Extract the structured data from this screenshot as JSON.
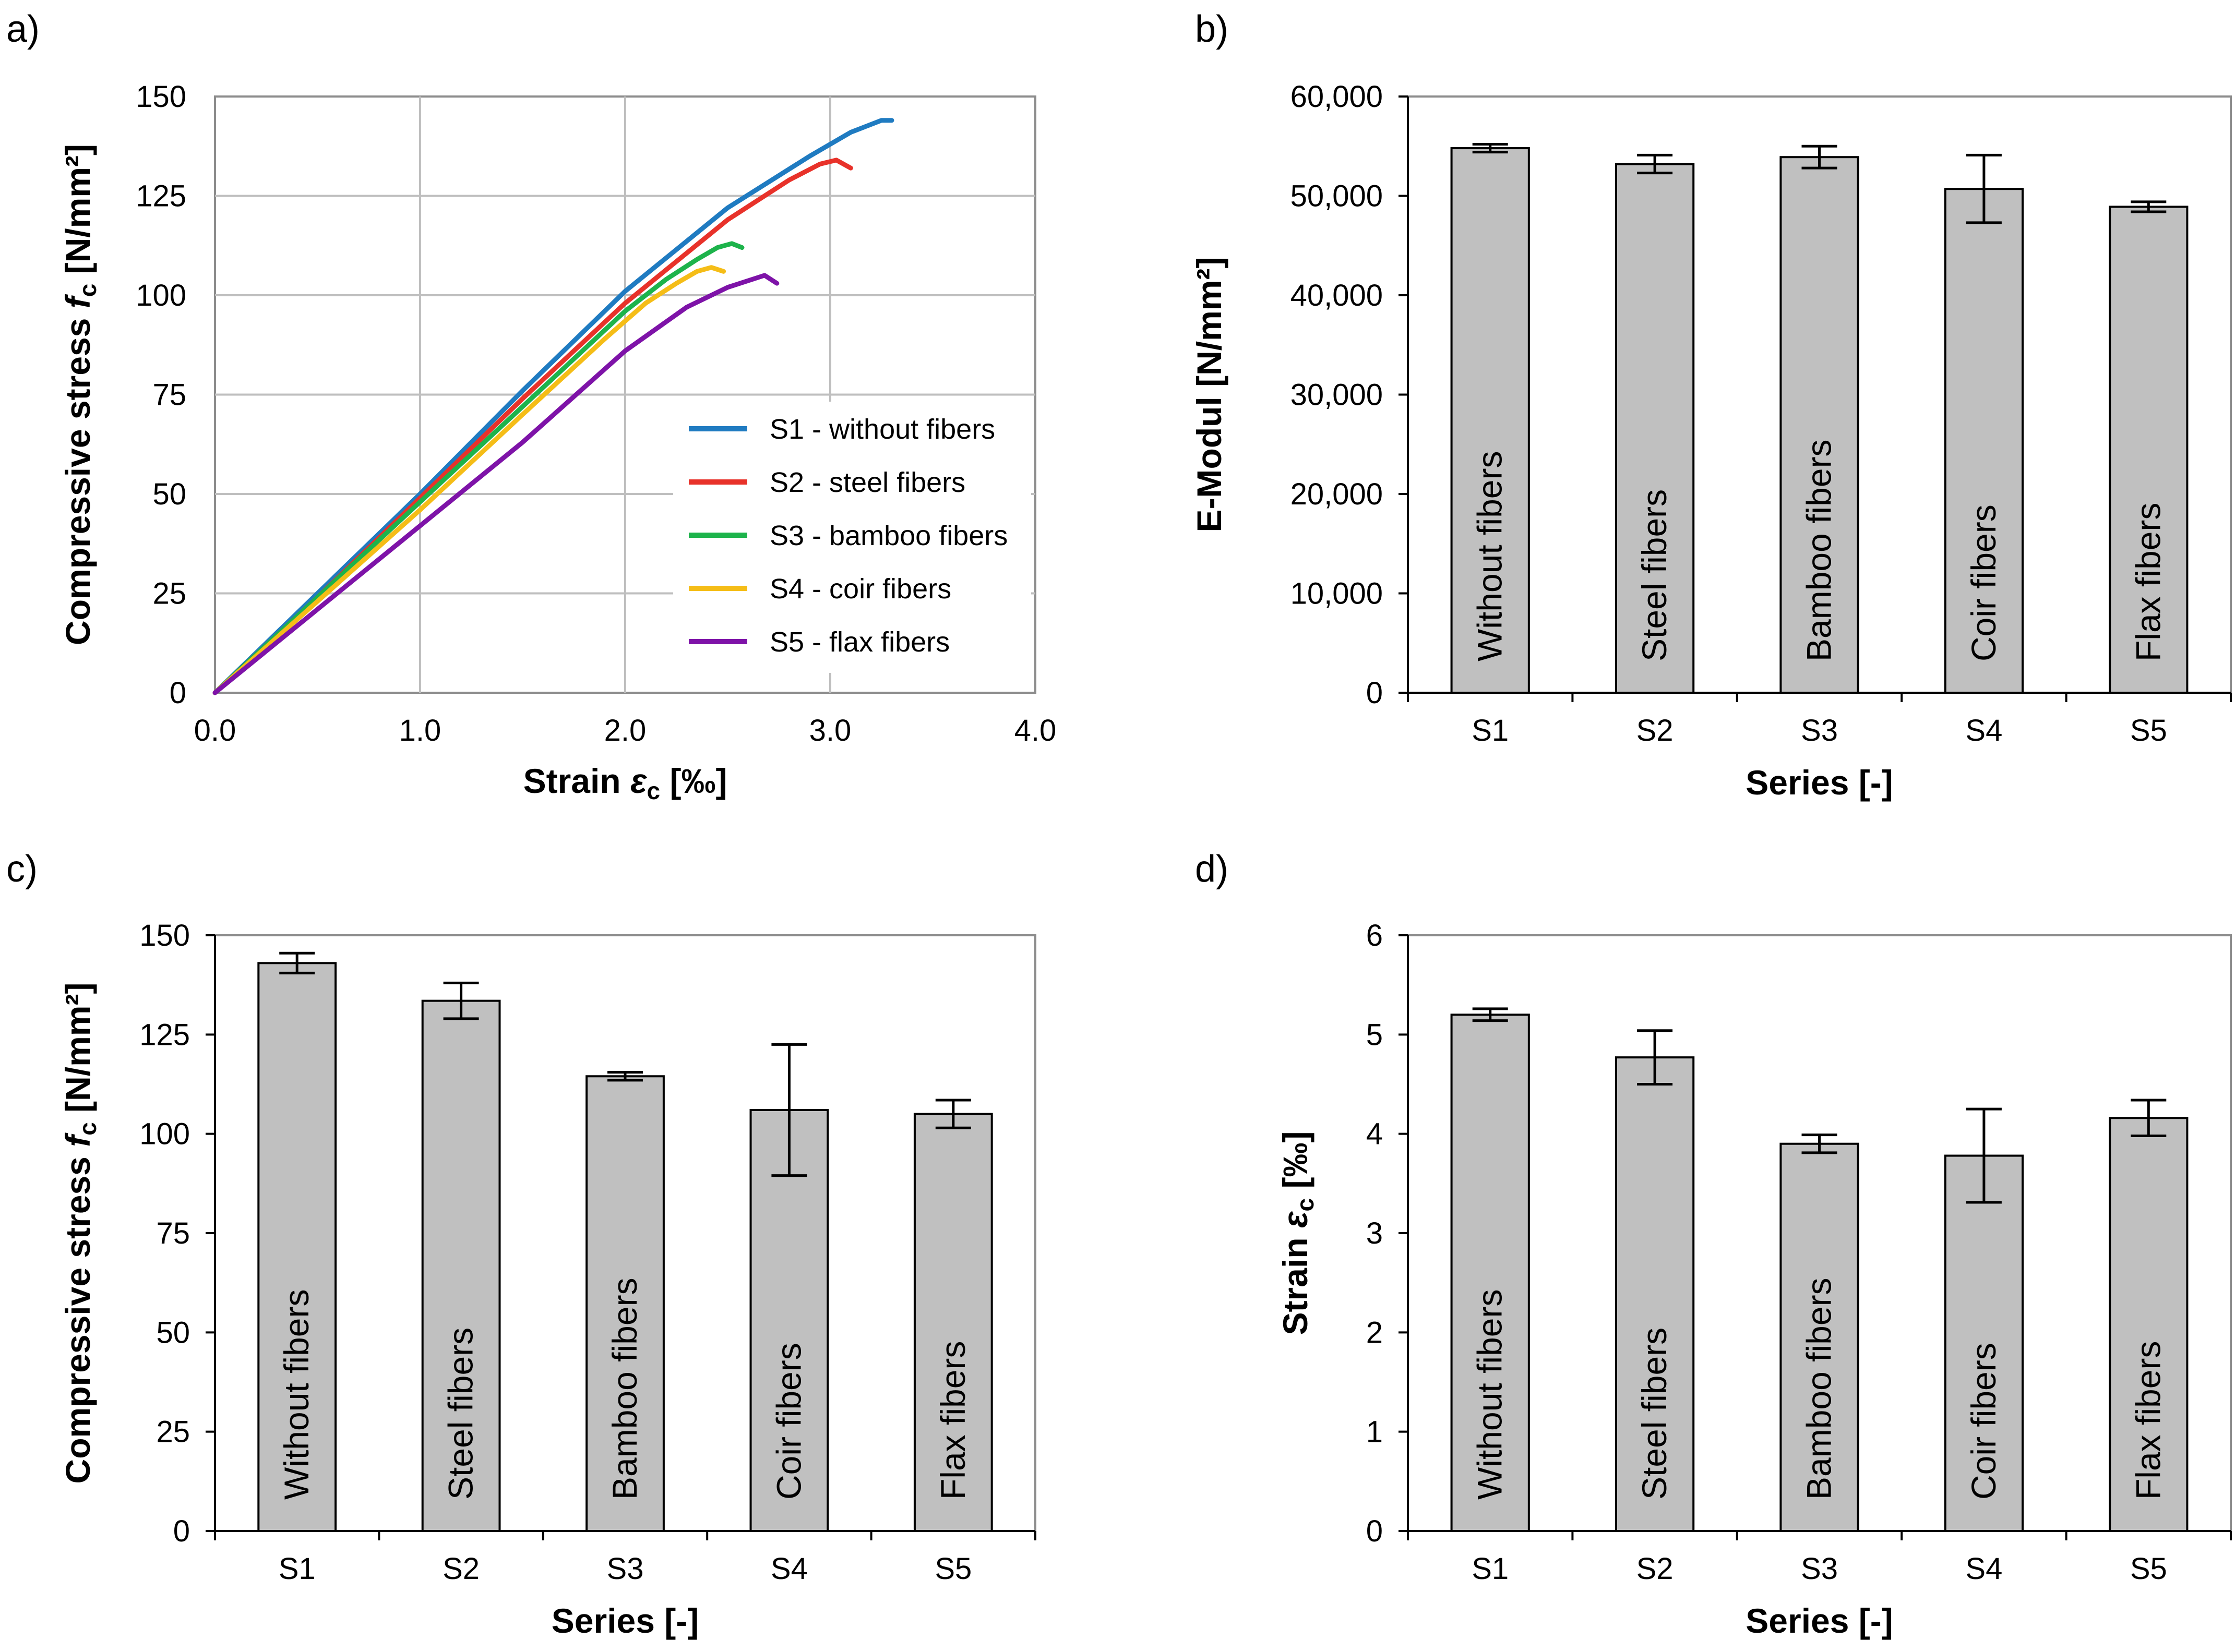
{
  "panels": {
    "a": "a)",
    "b": "b)",
    "c": "c)",
    "d": "d)"
  },
  "series_colors": [
    "#1f7bc1",
    "#e8322a",
    "#1db34b",
    "#f5bd17",
    "#7e13a8"
  ],
  "chart_data": [
    {
      "id": "a",
      "type": "line",
      "xlabel": "Strain εc [‰]",
      "ylabel": "Compressive stress fc [N/mm²]",
      "xlim": [
        0,
        4
      ],
      "ylim": [
        0,
        150
      ],
      "xticks": [
        "0.0",
        "1.0",
        "2.0",
        "3.0",
        "4.0"
      ],
      "yticks": [
        "0",
        "25",
        "50",
        "75",
        "100",
        "125",
        "150"
      ],
      "grid": true,
      "legend_position": "bottom-right",
      "series": [
        {
          "name": "S1 - without fibers",
          "x": [
            0,
            0.5,
            1.0,
            1.5,
            2.0,
            2.5,
            2.9,
            3.1,
            3.25,
            3.3
          ],
          "y": [
            0,
            25,
            50,
            76,
            101,
            122,
            135,
            141,
            144,
            144
          ]
        },
        {
          "name": "S2 - steel fibers",
          "x": [
            0,
            0.5,
            1.0,
            1.5,
            2.0,
            2.5,
            2.8,
            2.95,
            3.03,
            3.1
          ],
          "y": [
            0,
            24,
            49,
            74,
            98,
            119,
            129,
            133,
            134,
            132
          ]
        },
        {
          "name": "S3 - bamboo fibers",
          "x": [
            0,
            0.5,
            1.0,
            1.5,
            2.0,
            2.2,
            2.35,
            2.45,
            2.52,
            2.57
          ],
          "y": [
            0,
            24,
            48,
            72,
            96,
            104,
            109,
            112,
            113,
            112
          ]
        },
        {
          "name": "S4 - coir fibers",
          "x": [
            0,
            0.5,
            1.0,
            1.5,
            1.9,
            2.1,
            2.25,
            2.35,
            2.42,
            2.48
          ],
          "y": [
            0,
            23,
            46,
            70,
            89,
            98,
            103,
            106,
            107,
            106
          ]
        },
        {
          "name": "S5 - flax fibers",
          "x": [
            0,
            0.5,
            1.0,
            1.5,
            2.0,
            2.3,
            2.5,
            2.62,
            2.68,
            2.74
          ],
          "y": [
            0,
            21,
            42,
            63,
            86,
            97,
            102,
            104,
            105,
            103
          ]
        }
      ]
    },
    {
      "id": "b",
      "type": "bar",
      "categories": [
        "S1",
        "S2",
        "S3",
        "S4",
        "S5"
      ],
      "bar_labels": [
        "Without fibers",
        "Steel fibers",
        "Bamboo fibers",
        "Coir fibers",
        "Flax fibers"
      ],
      "values": [
        54800,
        53200,
        53900,
        50700,
        48900
      ],
      "errors": [
        400,
        900,
        1100,
        3400,
        500
      ],
      "ylim": [
        0,
        60000
      ],
      "yticks": [
        "0",
        "10,000",
        "20,000",
        "30,000",
        "40,000",
        "50,000",
        "60,000"
      ],
      "xlabel": "Series [-]",
      "ylabel": "E-Modul [N/mm²]",
      "grid": false
    },
    {
      "id": "c",
      "type": "bar",
      "categories": [
        "S1",
        "S2",
        "S3",
        "S4",
        "S5"
      ],
      "bar_labels": [
        "Without fibers",
        "Steel fibers",
        "Bamboo fibers",
        "Coir fibers",
        "Flax fibers"
      ],
      "values": [
        143,
        133.5,
        114.5,
        106,
        105
      ],
      "errors": [
        2.5,
        4.5,
        1,
        16.5,
        3.5
      ],
      "ylim": [
        0,
        150
      ],
      "yticks": [
        "0",
        "25",
        "50",
        "75",
        "100",
        "125",
        "150"
      ],
      "xlabel": "Series [-]",
      "ylabel": "Compressive stress fc [N/mm²]",
      "grid": false
    },
    {
      "id": "d",
      "type": "bar",
      "categories": [
        "S1",
        "S2",
        "S3",
        "S4",
        "S5"
      ],
      "bar_labels": [
        "Without fibers",
        "Steel fibers",
        "Bamboo fibers",
        "Coir fibers",
        "Flax fibers"
      ],
      "values": [
        5.2,
        4.77,
        3.9,
        3.78,
        4.16
      ],
      "errors": [
        0.06,
        0.27,
        0.09,
        0.47,
        0.18
      ],
      "ylim": [
        0,
        6
      ],
      "yticks": [
        "0",
        "1",
        "2",
        "3",
        "4",
        "5",
        "6"
      ],
      "xlabel": "Series [-]",
      "ylabel": "Strain εc [‰]",
      "grid": false
    }
  ]
}
